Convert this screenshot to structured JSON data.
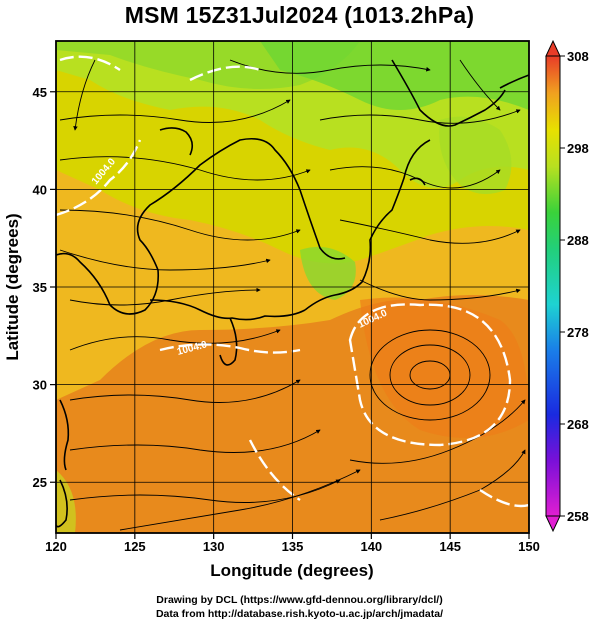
{
  "title": "MSM 15Z31Jul2024 (1013.2hPa)",
  "map": {
    "xlabel": "Longitude (degrees)",
    "ylabel": "Latitude  (degrees)",
    "lon_range": [
      120,
      150
    ],
    "lat_range": [
      22.4,
      47.6
    ],
    "lon_ticks": [
      120,
      125,
      130,
      135,
      140,
      145,
      150
    ],
    "lat_ticks": [
      25,
      30,
      35,
      40,
      45
    ],
    "contour_labels": [
      "1004.0",
      "1004.0",
      "1004.0"
    ],
    "colors": {
      "warm": "#e88a1c",
      "mid": "#d8d400",
      "cool": "#6ad634"
    }
  },
  "colorbar": {
    "min": 258,
    "max": 308,
    "tick_values": [
      308,
      298,
      288,
      278,
      268,
      258
    ]
  },
  "credits": {
    "line1": "Drawing by DCL (https://www.gfd-dennou.org/library/dcl/)",
    "line2": "Data from http://database.rish.kyoto-u.ac.jp/arch/jmadata/"
  }
}
